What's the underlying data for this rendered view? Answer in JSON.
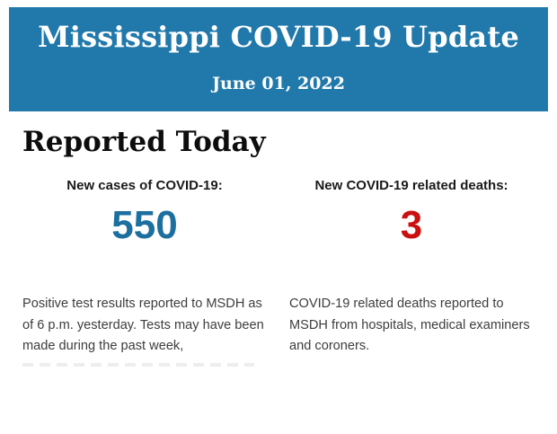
{
  "header": {
    "title": "Mississippi COVID-19 Update",
    "date": "June 01, 2022",
    "background_color": "#2179ab",
    "text_color": "#ffffff"
  },
  "section": {
    "heading": "Reported Today"
  },
  "stats": [
    {
      "label": "New cases of COVID-19:",
      "value": "550",
      "value_color": "#1c6f9e",
      "description": "Positive test results reported to MSDH as of 6 p.m. yesterday. Tests may have been made during the past week,"
    },
    {
      "label": "New COVID-19 related deaths:",
      "value": "3",
      "value_color": "#cb1010",
      "description": "COVID-19 related deaths reported to MSDH from hospitals, medical examiners and coroners."
    }
  ]
}
